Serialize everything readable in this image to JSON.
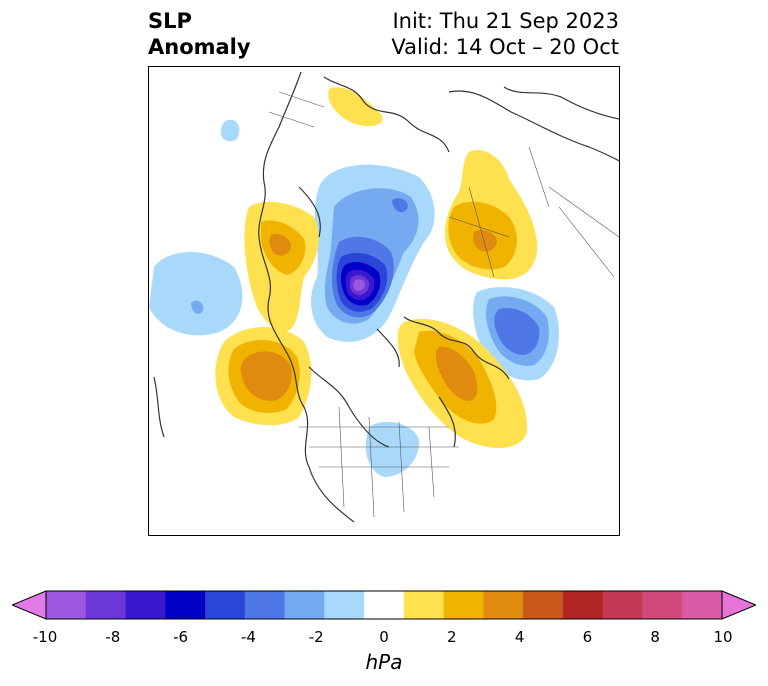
{
  "title": {
    "line1": "SLP",
    "line2": "Anomaly"
  },
  "subtitle": {
    "init": "Init: Thu 21 Sep 2023",
    "valid": "Valid: 14 Oct – 20 Oct"
  },
  "colorbar": {
    "unit": "hPa",
    "ticks": [
      "-10",
      "-8",
      "-6",
      "-4",
      "-2",
      "0",
      "2",
      "4",
      "6",
      "8",
      "10"
    ],
    "colors": [
      "#e27ae8",
      "#9d56de",
      "#6b38d8",
      "#3a18cf",
      "#0000c8",
      "#2a45d8",
      "#4f78e6",
      "#76aaf0",
      "#a9d9fa",
      "#ffffff",
      "#ffe04e",
      "#f0b300",
      "#e08a10",
      "#c8571a",
      "#b02525",
      "#c43a55",
      "#d04a7c",
      "#d85aa6",
      "#e673d8"
    ]
  }
}
